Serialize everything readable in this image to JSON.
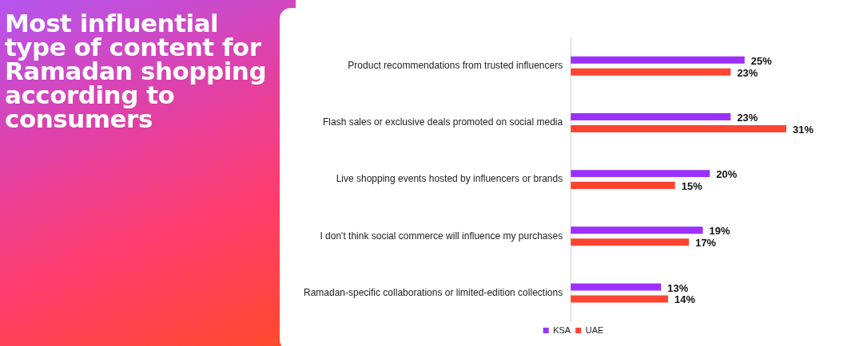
{
  "chart_data": {
    "type": "bar",
    "orientation": "horizontal",
    "title": "Most influential type of content for Ramadan shopping according to consumers",
    "categories": [
      "Product recommendations from trusted influencers",
      "Flash sales or exclusive deals promoted on social media",
      "Live shopping events hosted by influencers or brands",
      "I don't think social commerce will influence my purchases",
      "Ramadan-specific collaborations or limited-edition collections"
    ],
    "series": [
      {
        "name": "KSA",
        "color": "#9b30ff",
        "values": [
          25,
          23,
          20,
          19,
          13
        ],
        "value_labels": [
          "25%",
          "23%",
          "20%",
          "19%",
          "13%"
        ]
      },
      {
        "name": "UAE",
        "color": "#ff4430",
        "values": [
          23,
          31,
          15,
          17,
          14
        ],
        "value_labels": [
          "23%",
          "31%",
          "15%",
          "17%",
          "14%"
        ]
      }
    ],
    "legend": "bottom",
    "grid": false
  }
}
